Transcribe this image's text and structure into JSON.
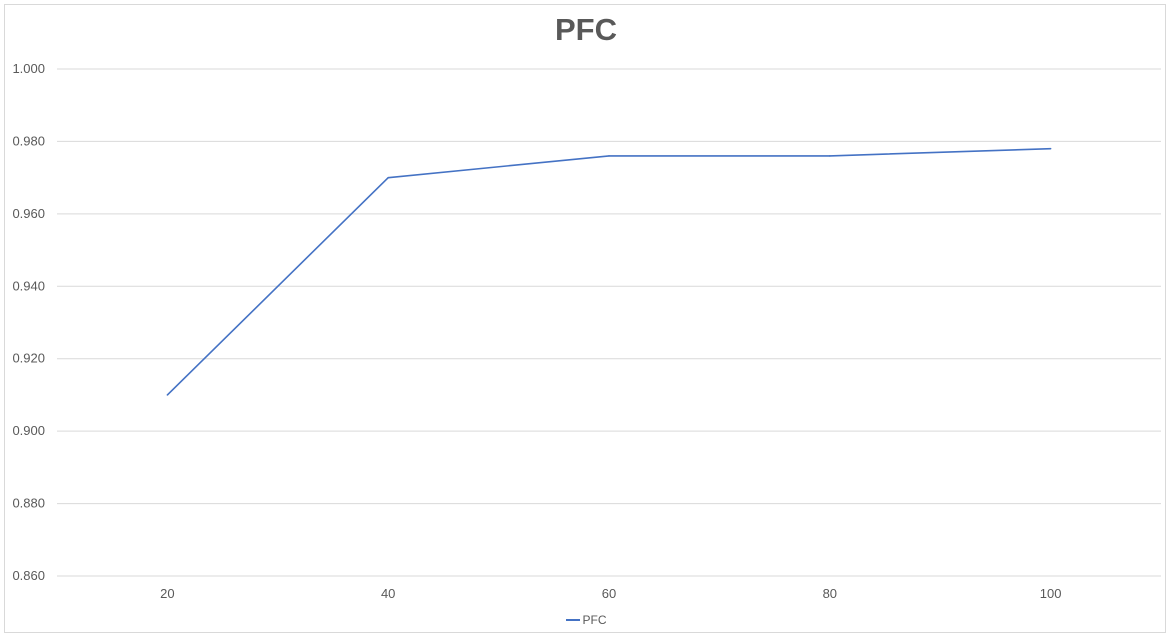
{
  "chart_data": {
    "type": "line",
    "title": "PFC",
    "xlabel": "",
    "ylabel": "",
    "categories": [
      "20",
      "40",
      "60",
      "80",
      "100"
    ],
    "series": [
      {
        "name": "PFC",
        "values": [
          0.91,
          0.97,
          0.976,
          0.976,
          0.978
        ],
        "color": "#4472c4"
      }
    ],
    "ylim": [
      0.86,
      1.0
    ],
    "yticks": [
      "0.860",
      "0.880",
      "0.900",
      "0.920",
      "0.940",
      "0.960",
      "0.980",
      "1.000"
    ],
    "grid": true,
    "legend_position": "bottom"
  }
}
